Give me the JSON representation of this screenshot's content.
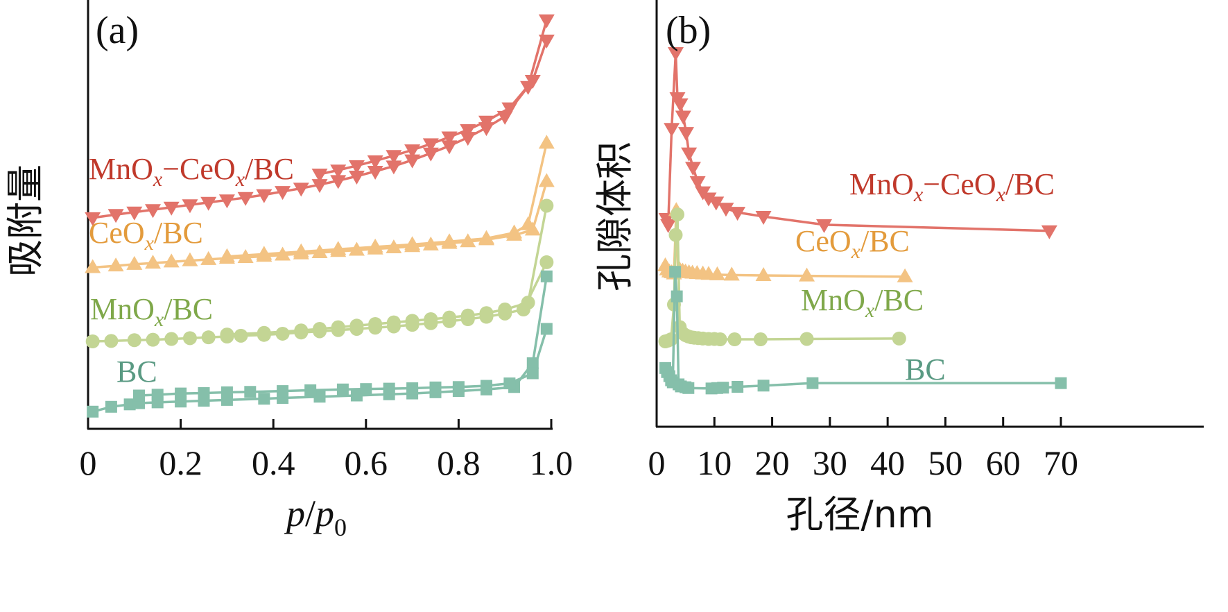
{
  "chart_data": [
    {
      "id": "a",
      "type": "line",
      "panel_label": "(a)",
      "title": "",
      "xlabel": "p/p0",
      "xlabel_parts": {
        "base": "p",
        "slash": "/",
        "sub_base": "p",
        "sub": "0"
      },
      "ylabel": "吸附量",
      "xlim": [
        0,
        1.0
      ],
      "ylim": [
        0,
        100
      ],
      "xticks": [
        0,
        0.2,
        0.4,
        0.6,
        0.8,
        1.0
      ],
      "xtick_labels": [
        "0",
        "0.2",
        "0.4",
        "0.6",
        "0.8",
        "1.0"
      ],
      "yticks_visible": false,
      "grid": false,
      "series": [
        {
          "name": "MnOx-CeOx/BC",
          "label_parts": [
            "MnO",
            "x",
            "−CeO",
            "x",
            "/BC"
          ],
          "color": "#e2736a",
          "label_color": "#c0392b",
          "marker": "triangle-down",
          "branches": [
            {
              "x": [
                0.01,
                0.06,
                0.1,
                0.14,
                0.18,
                0.22,
                0.26,
                0.3,
                0.34,
                0.38,
                0.42,
                0.46,
                0.5,
                0.54,
                0.58,
                0.62,
                0.66,
                0.7,
                0.74,
                0.78,
                0.82,
                0.86,
                0.9,
                0.95,
                0.99
              ],
              "y": [
                49.5,
                50.3,
                50.9,
                51.5,
                52.1,
                52.7,
                53.3,
                53.9,
                54.5,
                55.2,
                56.0,
                56.8,
                57.7,
                58.7,
                59.8,
                61.0,
                62.3,
                63.8,
                65.5,
                67.3,
                69.4,
                71.8,
                74.6,
                82,
                98.5
              ]
            },
            {
              "x": [
                0.5,
                0.54,
                0.58,
                0.62,
                0.66,
                0.7,
                0.74,
                0.78,
                0.82,
                0.86,
                0.91,
                0.96,
                0.99
              ],
              "y": [
                60.3,
                61.3,
                62.4,
                63.6,
                64.9,
                66.3,
                67.8,
                69.5,
                71.3,
                73.4,
                76.7,
                83.5,
                93.5
              ]
            }
          ]
        },
        {
          "name": "CeOx/BC",
          "label_parts": [
            "CeO",
            "x",
            "/BC"
          ],
          "color": "#f3c383",
          "label_color": "#e39b3c",
          "marker": "triangle-up",
          "branches": [
            {
              "x": [
                0.01,
                0.06,
                0.1,
                0.14,
                0.18,
                0.22,
                0.26,
                0.3,
                0.34,
                0.38,
                0.42,
                0.46,
                0.5,
                0.54,
                0.58,
                0.62,
                0.66,
                0.7,
                0.74,
                0.78,
                0.82,
                0.86,
                0.92,
                0.96,
                0.99
              ],
              "y": [
                37.2,
                37.6,
                38.0,
                38.3,
                38.6,
                38.9,
                39.2,
                39.5,
                39.7,
                40.0,
                40.3,
                40.6,
                40.9,
                41.2,
                41.5,
                41.8,
                42.1,
                42.4,
                42.8,
                43.2,
                43.6,
                44.1,
                45.2,
                46.5,
                58.5
              ]
            },
            {
              "x": [
                0.3,
                0.38,
                0.46,
                0.54,
                0.62,
                0.7,
                0.78,
                0.86,
                0.92,
                0.95,
                0.99
              ],
              "y": [
                39.9,
                40.5,
                41.1,
                41.7,
                42.3,
                42.9,
                43.6,
                44.4,
                45.8,
                47.8,
                68.0
              ]
            }
          ]
        },
        {
          "name": "MnOx/BC",
          "label_parts": [
            "MnO",
            "x",
            "/BC"
          ],
          "color": "#c3d594",
          "label_color": "#7fa84a",
          "marker": "circle",
          "branches": [
            {
              "x": [
                0.01,
                0.05,
                0.1,
                0.14,
                0.18,
                0.22,
                0.26,
                0.3,
                0.33,
                0.38,
                0.42,
                0.46,
                0.5,
                0.54,
                0.58,
                0.62,
                0.66,
                0.7,
                0.74,
                0.78,
                0.82,
                0.86,
                0.9,
                0.94,
                0.99
              ],
              "y": [
                18.9,
                19.0,
                19.2,
                19.3,
                19.5,
                19.7,
                19.9,
                20.1,
                20.3,
                20.5,
                20.8,
                21.1,
                21.4,
                21.7,
                22.0,
                22.3,
                22.6,
                23.0,
                23.4,
                23.9,
                24.4,
                25.0,
                25.8,
                26.8,
                38.5
              ]
            },
            {
              "x": [
                0.3,
                0.38,
                0.46,
                0.5,
                0.54,
                0.58,
                0.62,
                0.66,
                0.7,
                0.74,
                0.78,
                0.82,
                0.86,
                0.9,
                0.95,
                0.99
              ],
              "y": [
                20.6,
                21.0,
                21.6,
                22.0,
                22.4,
                22.8,
                23.2,
                23.6,
                24.0,
                24.4,
                24.8,
                25.3,
                25.9,
                26.8,
                28.5,
                52.5
              ]
            }
          ]
        },
        {
          "name": "BC",
          "label_parts": [
            "BC"
          ],
          "color": "#85bfaa",
          "label_color": "#5a9a83",
          "marker": "square",
          "branches": [
            {
              "x": [
                0.01,
                0.05,
                0.09,
                0.11,
                0.15,
                0.2,
                0.25,
                0.3,
                0.38,
                0.42,
                0.5,
                0.58,
                0.65,
                0.7,
                0.75,
                0.8,
                0.86,
                0.92,
                0.96,
                0.99
              ],
              "y": [
                1.5,
                2.7,
                3.3,
                3.6,
                3.8,
                4.0,
                4.2,
                4.4,
                4.7,
                4.9,
                5.2,
                5.5,
                5.8,
                6.0,
                6.3,
                6.6,
                7.0,
                7.6,
                13.5,
                35.0
              ]
            },
            {
              "x": [
                0.11,
                0.15,
                0.2,
                0.25,
                0.3,
                0.35,
                0.42,
                0.48,
                0.55,
                0.6,
                0.65,
                0.7,
                0.75,
                0.8,
                0.86,
                0.91,
                0.96,
                0.99
              ],
              "y": [
                5.5,
                5.7,
                6.0,
                6.1,
                6.3,
                6.4,
                6.6,
                6.8,
                7.0,
                7.1,
                7.2,
                7.3,
                7.5,
                7.6,
                7.9,
                8.5,
                11.0,
                22.0
              ]
            }
          ]
        }
      ]
    },
    {
      "id": "b",
      "type": "line",
      "panel_label": "(b)",
      "title": "",
      "xlabel": "孔径/nm",
      "ylabel": "孔隙体积",
      "xlim": [
        0,
        70
      ],
      "ylim": [
        0,
        100
      ],
      "xticks": [
        0,
        10,
        20,
        30,
        40,
        50,
        60,
        70
      ],
      "xtick_labels": [
        "0",
        "10",
        "20",
        "30",
        "40",
        "50",
        "60",
        "70"
      ],
      "yticks_visible": false,
      "grid": false,
      "series": [
        {
          "name": "MnOx-CeOx/BC",
          "label_parts": [
            "MnO",
            "x",
            "−CeO",
            "x",
            "/BC"
          ],
          "color": "#e2736a",
          "label_color": "#c0392b",
          "marker": "triangle-down",
          "x": [
            1.7,
            2.0,
            2.6,
            3.3,
            3.6,
            4.1,
            4.6,
            5.1,
            5.6,
            6.3,
            7.1,
            8.0,
            9.0,
            10.3,
            12.0,
            14.0,
            18.5,
            29.0,
            68.0
          ],
          "y": [
            50.0,
            48.5,
            72.0,
            90.5,
            79.5,
            78.0,
            75.0,
            71.0,
            66.0,
            62.5,
            59.0,
            56.5,
            55.0,
            54.0,
            52.5,
            51.5,
            50.5,
            48.5,
            47.0
          ]
        },
        {
          "name": "CeOx/BC",
          "label_parts": [
            "CeO",
            "x",
            "/BC"
          ],
          "color": "#f3c383",
          "label_color": "#e39b3c",
          "marker": "triangle-up",
          "x": [
            1.5,
            1.8,
            2.2,
            2.6,
            3.0,
            3.4,
            3.7,
            4.0,
            4.5,
            5.0,
            5.6,
            6.2,
            7.0,
            8.0,
            9.0,
            10.5,
            13.0,
            18.5,
            26.0,
            43.0
          ],
          "y": [
            38.5,
            37.5,
            37.0,
            36.8,
            36.5,
            52.0,
            37.0,
            37.5,
            37.2,
            37.0,
            36.8,
            36.7,
            36.6,
            36.5,
            36.4,
            36.3,
            36.2,
            36.1,
            36.0,
            35.8
          ]
        },
        {
          "name": "MnOx/BC",
          "label_parts": [
            "MnO",
            "x",
            "/BC"
          ],
          "color": "#c3d594",
          "label_color": "#7fa84a",
          "marker": "circle",
          "x": [
            1.5,
            2.0,
            2.5,
            3.0,
            3.3,
            3.6,
            4.0,
            4.5,
            5.0,
            5.5,
            6.0,
            6.5,
            7.2,
            8.0,
            9.0,
            10.0,
            11.0,
            13.5,
            18.0,
            26.0,
            42.0
          ],
          "y": [
            20.0,
            20.2,
            20.5,
            29.0,
            46.0,
            51.0,
            23.5,
            22.0,
            21.5,
            21.2,
            21.0,
            20.9,
            20.8,
            20.7,
            20.6,
            20.6,
            20.5,
            20.5,
            20.5,
            20.6,
            20.7
          ]
        },
        {
          "name": "BC",
          "label_parts": [
            "BC"
          ],
          "color": "#85bfaa",
          "label_color": "#5a9a83",
          "marker": "square",
          "x": [
            1.5,
            1.8,
            2.2,
            2.5,
            2.8,
            3.2,
            3.5,
            3.8,
            4.2,
            5.0,
            5.5,
            9.5,
            10.5,
            11.5,
            14.0,
            18.5,
            27.0,
            70.0
          ],
          "y": [
            13.5,
            12.5,
            11.5,
            10.5,
            10.0,
            37.0,
            31.0,
            9.5,
            9.0,
            8.8,
            8.6,
            8.5,
            8.6,
            8.7,
            8.9,
            9.2,
            9.8,
            9.8
          ]
        }
      ]
    }
  ]
}
